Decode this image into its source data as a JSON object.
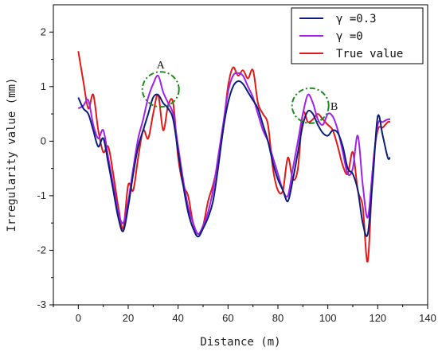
{
  "chart_data": {
    "type": "line",
    "xlabel": "Distance (m)",
    "ylabel": "Irregularity value (mm)",
    "xlim": [
      -10,
      140
    ],
    "ylim": [
      -3,
      2.5
    ],
    "xticks": [
      0,
      20,
      40,
      60,
      80,
      100,
      120,
      140
    ],
    "yticks": [
      -3,
      -2,
      -1,
      0,
      1,
      2
    ],
    "grid": false,
    "legend": "top-right",
    "series": [
      {
        "name": "γ =0.3",
        "color": "#0b1f7a",
        "x": [
          0,
          2,
          4,
          6,
          8,
          10,
          12,
          14,
          16,
          18,
          20,
          22,
          24,
          26,
          28,
          30,
          32,
          34,
          36,
          38,
          40,
          42,
          44,
          46,
          48,
          50,
          52,
          54,
          56,
          58,
          60,
          62,
          64,
          66,
          68,
          70,
          72,
          74,
          76,
          78,
          80,
          82,
          84,
          86,
          88,
          90,
          92,
          94,
          96,
          98,
          100,
          102,
          104,
          106,
          108,
          110,
          112,
          114,
          116,
          118,
          120,
          122,
          124,
          125
        ],
        "y": [
          0.8,
          0.6,
          0.5,
          0.2,
          -0.1,
          0.05,
          -0.4,
          -0.9,
          -1.4,
          -1.65,
          -1.2,
          -0.6,
          -0.1,
          0.2,
          0.5,
          0.8,
          0.85,
          0.7,
          0.6,
          0.4,
          -0.2,
          -0.8,
          -1.3,
          -1.6,
          -1.75,
          -1.6,
          -1.4,
          -1.1,
          -0.5,
          0.2,
          0.7,
          1.0,
          1.1,
          1.05,
          0.9,
          0.75,
          0.6,
          0.3,
          0.0,
          -0.4,
          -0.7,
          -0.9,
          -1.1,
          -0.7,
          -0.2,
          0.3,
          0.55,
          0.5,
          0.3,
          0.15,
          0.1,
          0.2,
          0.15,
          -0.1,
          -0.5,
          -0.6,
          -0.9,
          -1.5,
          -1.7,
          -0.7,
          0.45,
          0.1,
          -0.3,
          -0.3
        ]
      },
      {
        "name": "γ =0",
        "color": "#a020f0",
        "x": [
          0,
          2,
          4,
          6,
          8,
          10,
          12,
          14,
          16,
          18,
          20,
          22,
          24,
          26,
          28,
          30,
          32,
          34,
          36,
          38,
          40,
          42,
          44,
          46,
          48,
          50,
          52,
          54,
          56,
          58,
          60,
          62,
          64,
          66,
          68,
          70,
          72,
          74,
          76,
          78,
          80,
          82,
          84,
          86,
          88,
          90,
          92,
          94,
          96,
          98,
          100,
          102,
          104,
          106,
          108,
          110,
          112,
          114,
          116,
          118,
          120,
          122,
          124,
          125
        ],
        "y": [
          0.6,
          0.65,
          0.75,
          0.3,
          0.05,
          0.2,
          -0.3,
          -0.8,
          -1.3,
          -1.5,
          -1.1,
          -0.5,
          0.05,
          0.4,
          0.8,
          1.05,
          1.2,
          0.9,
          0.7,
          0.5,
          -0.1,
          -0.7,
          -1.2,
          -1.5,
          -1.7,
          -1.55,
          -1.3,
          -0.9,
          -0.3,
          0.3,
          0.9,
          1.2,
          1.25,
          1.2,
          1.0,
          0.8,
          0.5,
          0.2,
          0.0,
          -0.3,
          -0.6,
          -0.9,
          -1.0,
          -0.5,
          0.0,
          0.5,
          0.85,
          0.7,
          0.4,
          0.3,
          0.5,
          0.45,
          0.2,
          -0.2,
          -0.6,
          -0.5,
          0.1,
          -0.8,
          -1.4,
          -0.5,
          0.3,
          0.35,
          0.4,
          0.4
        ]
      },
      {
        "name": "True value",
        "color": "#e11919",
        "x": [
          0,
          2,
          4,
          6,
          8,
          10,
          12,
          14,
          16,
          18,
          20,
          22,
          24,
          26,
          28,
          30,
          32,
          34,
          36,
          38,
          40,
          42,
          44,
          46,
          48,
          50,
          52,
          54,
          56,
          58,
          60,
          62,
          64,
          66,
          68,
          70,
          72,
          74,
          76,
          78,
          80,
          82,
          84,
          86,
          88,
          90,
          92,
          94,
          96,
          98,
          100,
          102,
          104,
          106,
          108,
          110,
          112,
          114,
          116,
          118,
          120,
          122,
          124,
          125
        ],
        "y": [
          1.65,
          1.1,
          0.6,
          0.85,
          0.2,
          -0.2,
          -0.1,
          -0.6,
          -1.2,
          -1.6,
          -0.8,
          -0.9,
          -0.3,
          0.2,
          0.05,
          0.5,
          0.85,
          0.2,
          0.65,
          0.7,
          -0.3,
          -0.8,
          -1.0,
          -1.5,
          -1.7,
          -1.55,
          -1.1,
          -0.8,
          -0.4,
          0.2,
          1.0,
          1.35,
          1.2,
          1.3,
          1.15,
          1.3,
          0.7,
          0.5,
          0.3,
          -0.5,
          -0.9,
          -0.9,
          -0.3,
          -0.7,
          -0.5,
          0.5,
          0.35,
          0.4,
          0.5,
          0.4,
          0.3,
          0.2,
          -0.1,
          -0.45,
          -0.6,
          -0.2,
          -0.9,
          -1.2,
          -2.2,
          -0.5,
          0.2,
          0.25,
          0.35,
          0.35
        ]
      }
    ],
    "annotations": [
      {
        "label": "A",
        "cx": 33,
        "cy": 0.95
      },
      {
        "label": "B",
        "cx": 93,
        "cy": 0.65
      }
    ]
  }
}
